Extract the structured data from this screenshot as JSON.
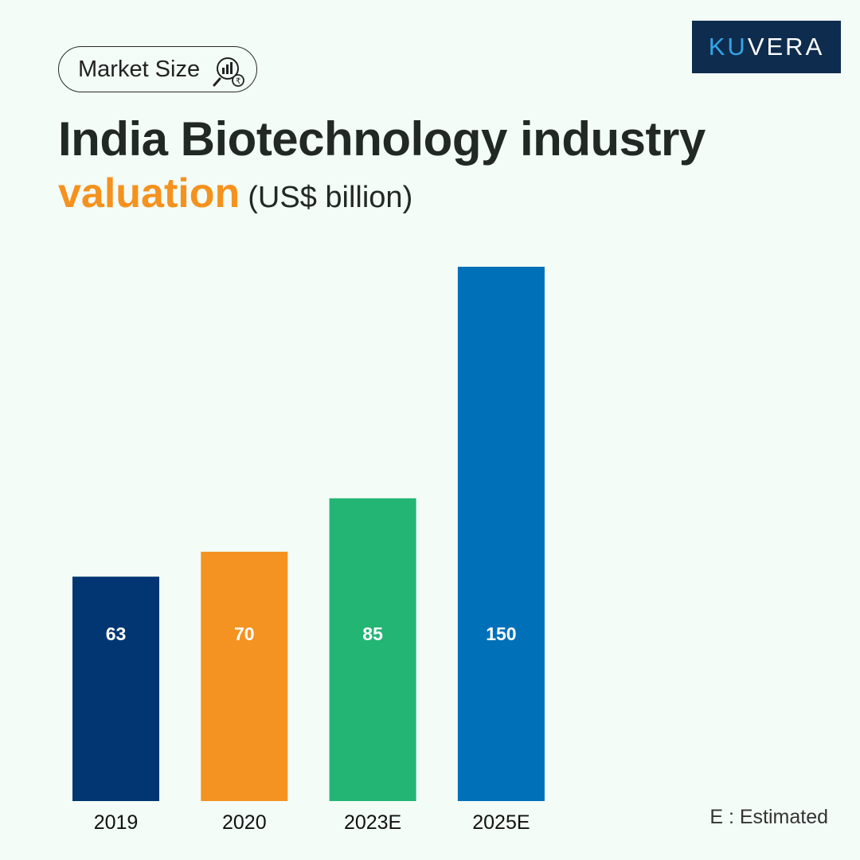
{
  "tag": {
    "label": "Market Size",
    "icon": "market-analysis-icon"
  },
  "brand": {
    "prefix": "KU",
    "suffix": "VERA"
  },
  "title": {
    "line1": "India Biotechnology industry",
    "accent": "valuation",
    "unit": "(US$ billion)"
  },
  "note": "E : Estimated",
  "colors": {
    "background": "#f3fcf7",
    "accent": "#f5921e",
    "brand_bg": "#0e2c4e",
    "brand_highlight": "#33a6e6"
  },
  "chart_data": {
    "type": "bar",
    "categories": [
      "2019",
      "2020",
      "2023E",
      "2025E"
    ],
    "values": [
      63,
      70,
      85,
      150
    ],
    "labels": [
      "63",
      "70",
      "85",
      "150"
    ],
    "colors": [
      "#013672",
      "#f59322",
      "#23b574",
      "#0070b9"
    ],
    "ylim": [
      0,
      150
    ],
    "title": "India Biotechnology industry valuation (US$ billion)",
    "xlabel": "",
    "ylabel": ""
  }
}
